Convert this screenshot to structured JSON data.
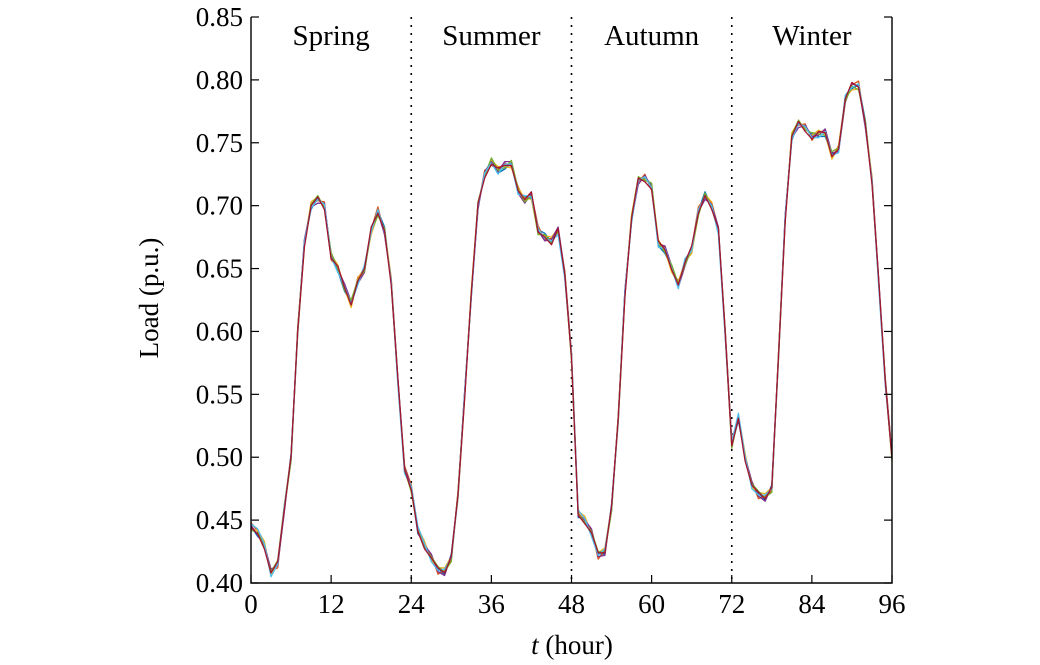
{
  "chart_data": {
    "type": "line",
    "xlabel_italic": "t",
    "xlabel_rest": " (hour)",
    "ylabel": "Load (p.u.)",
    "xlim": [
      0,
      96
    ],
    "ylim": [
      0.4,
      0.85
    ],
    "xticks": [
      "0",
      "12",
      "24",
      "36",
      "48",
      "60",
      "72",
      "84",
      "96"
    ],
    "yticks": [
      "0.40",
      "0.45",
      "0.50",
      "0.55",
      "0.60",
      "0.65",
      "0.70",
      "0.75",
      "0.80",
      "0.85"
    ],
    "dividers": [
      24,
      48,
      72
    ],
    "seasons": [
      {
        "label": "Spring",
        "x": 12
      },
      {
        "label": "Summer",
        "x": 36
      },
      {
        "label": "Autumn",
        "x": 60
      },
      {
        "label": "Winter",
        "x": 84
      }
    ],
    "grid": false,
    "series_colors": [
      "#0072BD",
      "#D95319",
      "#EDB120",
      "#7E2F8E",
      "#77AC30",
      "#4DBEEE",
      "#A2142F"
    ],
    "x": [
      0,
      1,
      2,
      3,
      4,
      5,
      6,
      7,
      8,
      9,
      10,
      11,
      12,
      13,
      14,
      15,
      16,
      17,
      18,
      19,
      20,
      21,
      22,
      23,
      24,
      25,
      26,
      27,
      28,
      29,
      30,
      31,
      32,
      33,
      34,
      35,
      36,
      37,
      38,
      39,
      40,
      41,
      42,
      43,
      44,
      45,
      46,
      47,
      48,
      49,
      50,
      51,
      52,
      53,
      54,
      55,
      56,
      57,
      58,
      59,
      60,
      61,
      62,
      63,
      64,
      65,
      66,
      67,
      68,
      69,
      70,
      71,
      72,
      73,
      74,
      75,
      76,
      77,
      78,
      79,
      80,
      81,
      82,
      83,
      84,
      85,
      86,
      87,
      88,
      89,
      90,
      91,
      92,
      93,
      94,
      95,
      96
    ],
    "base_load": [
      0.445,
      0.44,
      0.43,
      0.408,
      0.415,
      0.46,
      0.5,
      0.6,
      0.67,
      0.7,
      0.705,
      0.7,
      0.66,
      0.65,
      0.635,
      0.622,
      0.64,
      0.65,
      0.68,
      0.695,
      0.68,
      0.64,
      0.56,
      0.49,
      0.475,
      0.442,
      0.43,
      0.42,
      0.41,
      0.409,
      0.42,
      0.47,
      0.55,
      0.63,
      0.7,
      0.725,
      0.735,
      0.728,
      0.732,
      0.733,
      0.712,
      0.705,
      0.708,
      0.68,
      0.675,
      0.672,
      0.68,
      0.645,
      0.58,
      0.455,
      0.45,
      0.44,
      0.422,
      0.425,
      0.46,
      0.53,
      0.63,
      0.69,
      0.72,
      0.722,
      0.715,
      0.67,
      0.665,
      0.65,
      0.637,
      0.655,
      0.665,
      0.695,
      0.708,
      0.7,
      0.68,
      0.6,
      0.51,
      0.532,
      0.5,
      0.478,
      0.47,
      0.468,
      0.475,
      0.58,
      0.69,
      0.755,
      0.765,
      0.762,
      0.755,
      0.757,
      0.758,
      0.74,
      0.745,
      0.785,
      0.795,
      0.795,
      0.765,
      0.72,
      0.64,
      0.56,
      0.5
    ],
    "series_offsets": [
      [
        0.0,
        -0.003,
        0.002,
        -0.001,
        0.001,
        -0.002,
        0.003,
        -0.001,
        0.002,
        -0.003,
        0.001,
        0.0,
        0.002,
        -0.002,
        -0.003,
        0.001,
        -0.001,
        0.002,
        -0.002,
        0.001,
        0.003,
        -0.001,
        0.001,
        -0.002
      ],
      [
        0.003,
        0.001,
        -0.001,
        0.002,
        -0.003,
        0.001,
        -0.002,
        0.003,
        0.0,
        0.002,
        -0.001,
        0.003,
        -0.003,
        0.001,
        0.002,
        -0.002,
        0.003,
        -0.001,
        0.001,
        0.004,
        -0.002,
        0.002,
        -0.001,
        0.003
      ],
      [
        -0.002,
        0.002,
        0.003,
        -0.002,
        0.002,
        0.003,
        0.001,
        -0.003,
        -0.002,
        0.003,
        0.002,
        -0.001,
        0.001,
        0.003,
        -0.001,
        -0.003,
        0.002,
        0.001,
        -0.003,
        -0.002,
        0.001,
        0.003,
        0.002,
        -0.001
      ],
      [
        0.001,
        -0.002,
        0.0,
        0.003,
        -0.001,
        -0.003,
        0.002,
        0.001,
        0.003,
        -0.001,
        -0.003,
        0.002,
        0.0,
        -0.001,
        0.003,
        0.002,
        -0.002,
        -0.003,
        0.002,
        0.0,
        -0.003,
        0.001,
        0.003,
        0.002
      ],
      [
        -0.003,
        0.0,
        -0.002,
        0.001,
        0.003,
        0.0,
        -0.003,
        0.002,
        -0.001,
        0.001,
        0.003,
        -0.002,
        0.003,
        0.0,
        -0.002,
        0.003,
        0.001,
        -0.002,
        0.0,
        -0.003,
        0.002,
        -0.002,
        0.0,
        0.001
      ],
      [
        0.002,
        0.003,
        0.001,
        -0.003,
        0.0,
        0.002,
        0.0,
        -0.002,
        0.001,
        -0.002,
        0.0,
        0.001,
        -0.001,
        -0.003,
        0.001,
        0.0,
        -0.003,
        0.003,
        -0.001,
        0.002,
        -0.001,
        0.0,
        -0.003,
        -0.003
      ],
      [
        -0.001,
        -0.001,
        -0.003,
        0.0,
        0.002,
        -0.001,
        0.001,
        0.0,
        -0.003,
        0.0,
        0.002,
        -0.003,
        -0.002,
        0.002,
        0.0,
        -0.001,
        0.0,
        0.0,
        0.003,
        -0.001,
        0.0,
        -0.003,
        0.002,
        0.0
      ]
    ]
  }
}
